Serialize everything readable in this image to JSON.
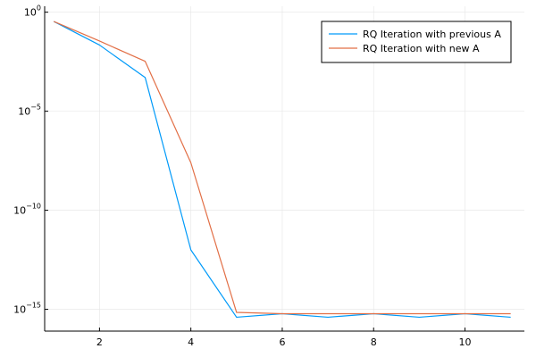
{
  "chart_data": {
    "type": "line",
    "xlabel": "",
    "ylabel": "",
    "yscale": "log10",
    "xlim": [
      0.8,
      11.3
    ],
    "ylim_log10": [
      -16.1,
      0.3
    ],
    "grid": true,
    "legend_position": "top-right",
    "x_ticks": [
      2,
      4,
      6,
      8,
      10
    ],
    "x_tick_labels": [
      "2",
      "4",
      "6",
      "8",
      "10"
    ],
    "y_ticks_log10": [
      0,
      -5,
      -10,
      -15
    ],
    "y_tick_labels": [
      {
        "base": "10",
        "exp": "0"
      },
      {
        "base": "10",
        "exp": "−5"
      },
      {
        "base": "10",
        "exp": "−10"
      },
      {
        "base": "10",
        "exp": "−15"
      }
    ],
    "x": [
      1,
      2,
      3,
      4,
      5,
      6,
      7,
      8,
      9,
      10,
      11
    ],
    "series": [
      {
        "name": "RQ Iteration with previous A",
        "color": "#009af9",
        "values": [
          0.34,
          0.022,
          0.0005,
          1e-12,
          4e-16,
          6e-16,
          4e-16,
          6e-16,
          4e-16,
          6e-16,
          4e-16
        ]
      },
      {
        "name": "RQ Iteration with new A",
        "color": "#e26f46",
        "values": [
          0.34,
          0.035,
          0.0033,
          2.5e-08,
          7e-16,
          6e-16,
          6e-16,
          6e-16,
          6e-16,
          6e-16,
          6e-16
        ]
      }
    ]
  }
}
